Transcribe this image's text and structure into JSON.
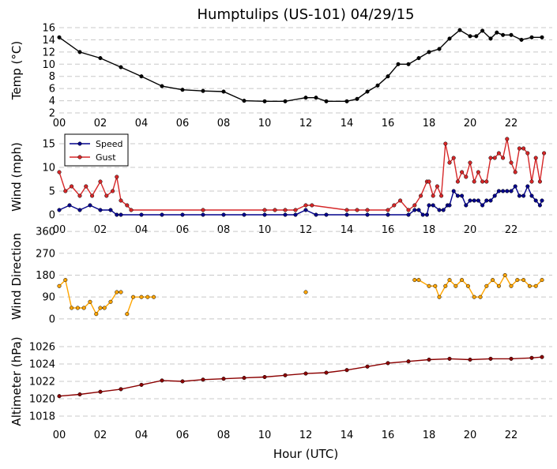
{
  "title": "Humptulips (US-101) 04/29/15",
  "xlabel": "Hour (UTC)",
  "x_tick_labels": [
    "00",
    "02",
    "04",
    "06",
    "08",
    "10",
    "12",
    "14",
    "16",
    "18",
    "20",
    "22"
  ],
  "colors": {
    "temp": "#000000",
    "speed": "#00008b",
    "gust": "#d62728",
    "direction": "#ffa500",
    "altimeter": "#8b0000",
    "grid": "#c8c8c8"
  },
  "chart_data": [
    {
      "type": "line",
      "ylabel": "Temp (°C)",
      "xlim": [
        0,
        24
      ],
      "ylim": [
        2,
        16
      ],
      "yticks": [
        2,
        4,
        6,
        8,
        10,
        12,
        14,
        16
      ],
      "grid": true,
      "series": [
        {
          "key": "temp",
          "x": [
            0,
            1,
            2,
            3,
            4,
            5,
            6,
            7,
            8,
            9,
            10,
            11,
            12,
            12.5,
            13,
            14,
            14.5,
            15,
            15.5,
            16,
            16.5,
            17,
            17.5,
            18,
            18.5,
            19,
            19.5,
            20,
            20.3,
            20.6,
            21,
            21.3,
            21.6,
            22,
            22.5,
            23,
            23.5
          ],
          "y": [
            14.4,
            12,
            11,
            9.5,
            8,
            6.4,
            5.8,
            5.6,
            5.5,
            4,
            3.9,
            3.9,
            4.5,
            4.5,
            3.9,
            3.9,
            4.3,
            5.5,
            6.5,
            8,
            10,
            10,
            11,
            12,
            12.5,
            14.2,
            15.6,
            14.6,
            14.6,
            15.5,
            14.2,
            15.2,
            14.8,
            14.8,
            14,
            14.4,
            14.4
          ]
        }
      ]
    },
    {
      "type": "line",
      "ylabel": "Wind (mph)",
      "xlim": [
        0,
        24
      ],
      "ylim": [
        -1,
        17
      ],
      "yticks": [
        0,
        5,
        10,
        15
      ],
      "grid": true,
      "legend": "top-left",
      "series": [
        {
          "key": "speed",
          "name": "Speed",
          "x": [
            0,
            0.5,
            1,
            1.5,
            2,
            2.5,
            2.8,
            3,
            4,
            5,
            6,
            7,
            8,
            9,
            10,
            11,
            11.5,
            12,
            12.5,
            13,
            14,
            15,
            16,
            17,
            17.3,
            17.5,
            17.7,
            17.9,
            18,
            18.2,
            18.5,
            18.7,
            18.9,
            19,
            19.2,
            19.4,
            19.6,
            19.8,
            20,
            20.2,
            20.4,
            20.6,
            20.8,
            21,
            21.2,
            21.4,
            21.6,
            21.8,
            22,
            22.2,
            22.4,
            22.6,
            22.8,
            23,
            23.2,
            23.4,
            23.5
          ],
          "y": [
            1,
            2,
            1,
            2,
            1,
            1,
            0,
            0,
            0,
            0,
            0,
            0,
            0,
            0,
            0,
            0,
            0,
            1,
            0,
            0,
            0,
            0,
            0,
            0,
            1,
            1,
            0,
            0,
            2,
            2,
            1,
            1,
            2,
            2,
            5,
            4,
            4,
            2,
            3,
            3,
            3,
            2,
            3,
            3,
            4,
            5,
            5,
            5,
            5,
            6,
            4,
            4,
            6,
            4,
            3,
            2,
            3
          ]
        },
        {
          "key": "gust",
          "name": "Gust",
          "x": [
            0,
            0.3,
            0.6,
            1,
            1.3,
            1.6,
            2,
            2.3,
            2.6,
            2.8,
            3,
            3.3,
            3.5,
            7,
            10,
            10.5,
            11,
            11.5,
            12,
            12.3,
            14,
            14.5,
            15,
            16,
            16.3,
            16.6,
            17,
            17.3,
            17.6,
            17.9,
            18,
            18.2,
            18.4,
            18.6,
            18.8,
            19,
            19.2,
            19.4,
            19.6,
            19.8,
            20,
            20.2,
            20.4,
            20.6,
            20.8,
            21,
            21.2,
            21.4,
            21.6,
            21.8,
            22,
            22.2,
            22.4,
            22.6,
            22.8,
            23,
            23.2,
            23.4,
            23.6
          ],
          "y": [
            9,
            5,
            6,
            4,
            6,
            4,
            7,
            4,
            5,
            8,
            3,
            2,
            1,
            1,
            1,
            1,
            1,
            1,
            2,
            2,
            1,
            1,
            1,
            1,
            2,
            3,
            1,
            2,
            4,
            7,
            7,
            4,
            6,
            4,
            15,
            11,
            12,
            7,
            9,
            8,
            11,
            7,
            9,
            7,
            7,
            12,
            12,
            13,
            12,
            16,
            11,
            9,
            14,
            14,
            13,
            7,
            12,
            7,
            13
          ]
        }
      ]
    },
    {
      "type": "line",
      "ylabel": "Wind Direction",
      "xlim": [
        0,
        24
      ],
      "ylim": [
        -20,
        370
      ],
      "yticks": [
        0,
        90,
        180,
        270,
        360
      ],
      "grid": true,
      "series": [
        {
          "key": "direction",
          "segments": [
            {
              "x": [
                0,
                0.3,
                0.6,
                0.9,
                1.2,
                1.5,
                1.8,
                2,
                2.2,
                2.5,
                2.8,
                3
              ],
              "y": [
                135,
                160,
                45,
                45,
                45,
                70,
                20,
                45,
                45,
                70,
                110,
                110
              ]
            },
            {
              "x": [
                3.3,
                3.6,
                4,
                4.3,
                4.6
              ],
              "y": [
                20,
                90,
                90,
                90,
                90
              ]
            },
            {
              "x": [
                12
              ],
              "y": [
                110
              ]
            },
            {
              "x": [
                17.3,
                17.5,
                18,
                18.3,
                18.5,
                18.8,
                19,
                19.3,
                19.6,
                19.9,
                20.2,
                20.5,
                20.8,
                21.1,
                21.4,
                21.7,
                22,
                22.3,
                22.6,
                22.9,
                23.2,
                23.5
              ],
              "y": [
                160,
                160,
                135,
                135,
                90,
                135,
                160,
                135,
                160,
                135,
                90,
                90,
                135,
                160,
                135,
                180,
                135,
                160,
                160,
                135,
                135,
                160
              ]
            }
          ]
        }
      ]
    },
    {
      "type": "line",
      "ylabel": "Altimeter (hPa)",
      "xlim": [
        0,
        24
      ],
      "ylim": [
        1017,
        1027
      ],
      "yticks": [
        1018,
        1020,
        1022,
        1024,
        1026
      ],
      "grid": true,
      "series": [
        {
          "key": "altimeter",
          "x": [
            0,
            1,
            2,
            3,
            4,
            5,
            6,
            7,
            8,
            9,
            10,
            11,
            12,
            13,
            14,
            15,
            16,
            17,
            18,
            19,
            20,
            21,
            22,
            23,
            23.5
          ],
          "y": [
            1020.3,
            1020.5,
            1020.8,
            1021.1,
            1021.6,
            1022.1,
            1022.0,
            1022.2,
            1022.3,
            1022.4,
            1022.5,
            1022.7,
            1022.9,
            1023.0,
            1023.3,
            1023.7,
            1024.1,
            1024.3,
            1024.5,
            1024.6,
            1024.5,
            1024.6,
            1024.6,
            1024.7,
            1024.8
          ]
        }
      ]
    }
  ]
}
